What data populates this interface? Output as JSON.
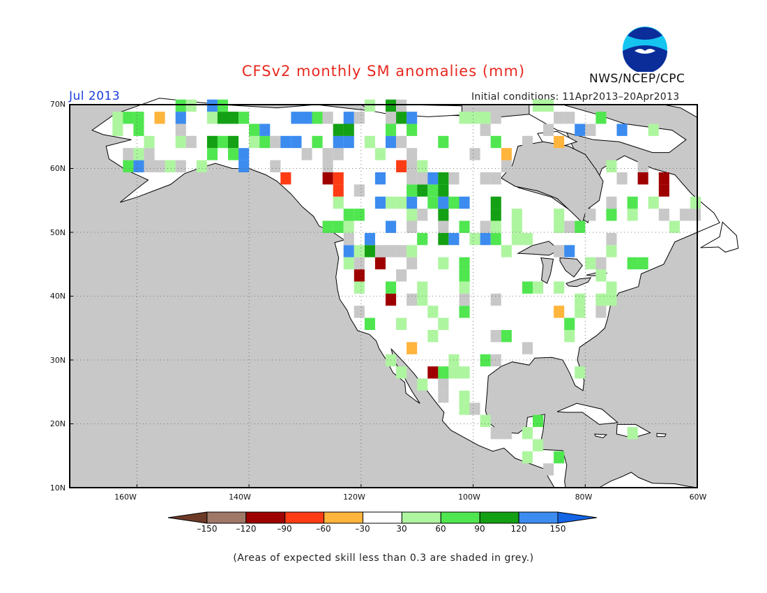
{
  "title": "CFSv2 monthly SM anomalies (mm)",
  "valid_month": "Jul 2013",
  "initial_conditions": "Initial conditions: 11Apr2013–20Apr2013",
  "agency": "NWS/NCEP/CPC",
  "logo_text": "NOAA",
  "map": {
    "region": "North America",
    "projection": "lat-lon",
    "lon_range": [
      -172,
      -60
    ],
    "lat_range": [
      10,
      70
    ],
    "ocean_color": "#c8c8c8",
    "land_color": "#ffffff",
    "lat_labels": [
      "70N",
      "60N",
      "50N",
      "40N",
      "30N",
      "20N",
      "10N"
    ],
    "lon_labels": [
      "160W",
      "140W",
      "120W",
      "100W",
      "80W",
      "60W"
    ]
  },
  "colorbar": {
    "tick_labels": [
      "–150",
      "–120",
      "–90",
      "–60",
      "–30",
      "30",
      "60",
      "90",
      "120",
      "150"
    ],
    "colors": [
      "#6e3a28",
      "#a07868",
      "#9e0000",
      "#ff3c14",
      "#ffb43c",
      "#ffffff",
      "#aef5a0",
      "#50e650",
      "#14a014",
      "#3c8cf0",
      "#1464e6"
    ]
  },
  "note": "(Areas of expected skill less than 0.3 are shaded in grey.)"
}
